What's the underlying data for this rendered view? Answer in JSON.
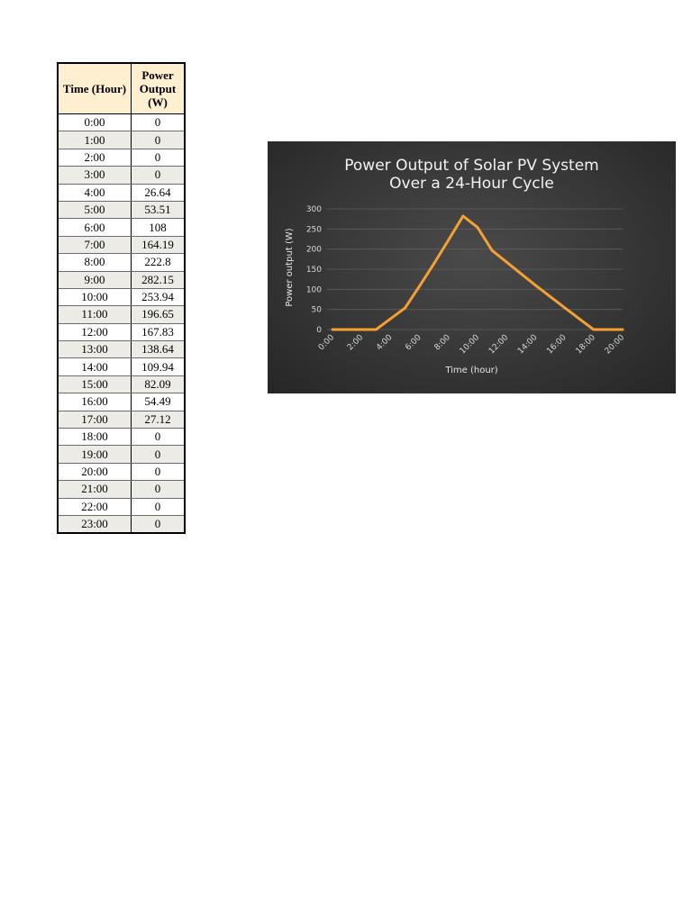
{
  "table": {
    "header_time": "Time (Hour)",
    "header_power_line1": "Power",
    "header_power_line2": "Output",
    "header_power_line3": "(W)",
    "rows": [
      {
        "time": "0:00",
        "power": "0"
      },
      {
        "time": "1:00",
        "power": "0"
      },
      {
        "time": "2:00",
        "power": "0"
      },
      {
        "time": "3:00",
        "power": "0"
      },
      {
        "time": "4:00",
        "power": "26.64"
      },
      {
        "time": "5:00",
        "power": "53.51"
      },
      {
        "time": "6:00",
        "power": "108"
      },
      {
        "time": "7:00",
        "power": "164.19"
      },
      {
        "time": "8:00",
        "power": "222.8"
      },
      {
        "time": "9:00",
        "power": "282.15"
      },
      {
        "time": "10:00",
        "power": "253.94"
      },
      {
        "time": "11:00",
        "power": "196.65"
      },
      {
        "time": "12:00",
        "power": "167.83"
      },
      {
        "time": "13:00",
        "power": "138.64"
      },
      {
        "time": "14:00",
        "power": "109.94"
      },
      {
        "time": "15:00",
        "power": "82.09"
      },
      {
        "time": "16:00",
        "power": "54.49"
      },
      {
        "time": "17:00",
        "power": "27.12"
      },
      {
        "time": "18:00",
        "power": "0"
      },
      {
        "time": "19:00",
        "power": "0"
      },
      {
        "time": "20:00",
        "power": "0"
      },
      {
        "time": "21:00",
        "power": "0"
      },
      {
        "time": "22:00",
        "power": "0"
      },
      {
        "time": "23:00",
        "power": "0"
      }
    ]
  },
  "chart_data": {
    "type": "line",
    "title_line1": "Power Output of Solar PV System",
    "title_line2": "Over a 24-Hour Cycle",
    "xlabel": "Time (hour)",
    "ylabel": "Power output (W)",
    "ylim": [
      0,
      300
    ],
    "yticks": [
      0,
      50,
      100,
      150,
      200,
      250,
      300
    ],
    "x_tick_labels": [
      "0:00",
      "2:00",
      "4:00",
      "6:00",
      "8:00",
      "10:00",
      "12:00",
      "14:00",
      "16:00",
      "18:00",
      "20:00"
    ],
    "grid": true,
    "legend": "none",
    "line_color": "#f5a033",
    "background": "dark gradient",
    "series": [
      {
        "x": [
          0,
          1,
          2,
          3,
          4,
          5,
          6,
          7,
          8,
          9,
          10,
          11,
          12,
          13,
          14,
          15,
          16,
          17,
          18,
          19,
          20
        ],
        "values": [
          0,
          0,
          0,
          0,
          26.64,
          53.51,
          108,
          164.19,
          222.8,
          282.15,
          253.94,
          196.65,
          167.83,
          138.64,
          109.94,
          82.09,
          54.49,
          27.12,
          0,
          0,
          0
        ]
      }
    ]
  }
}
